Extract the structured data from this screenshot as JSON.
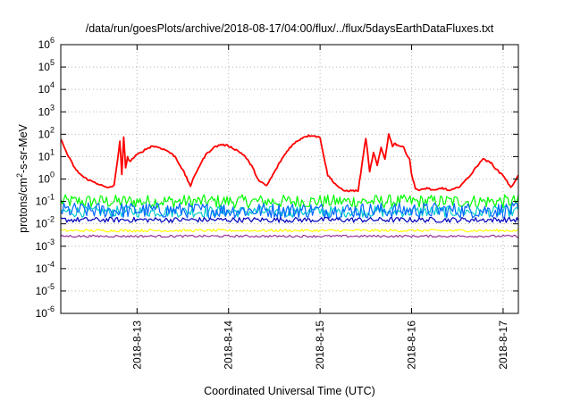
{
  "chart_data": {
    "type": "line",
    "title": "/data/run/goesPlots/archive/2018-08-17/04:00/flux/../flux/5daysEarthDataFluxes.txt",
    "xlabel": "Coordinated Universal Time (UTC)",
    "ylabel_prefix": "protons/cm",
    "ylabel_sup": "2",
    "ylabel_suffix": "-s-sr-MeV",
    "y_scale": "log",
    "ylim": [
      1e-06,
      1000000.0
    ],
    "y_ticks": [
      {
        "exp": -6,
        "base": "10",
        "sup": "-6"
      },
      {
        "exp": -5,
        "base": "10",
        "sup": "-5"
      },
      {
        "exp": -4,
        "base": "10",
        "sup": "-4"
      },
      {
        "exp": -3,
        "base": "10",
        "sup": "-3"
      },
      {
        "exp": -2,
        "base": "10",
        "sup": "-2"
      },
      {
        "exp": -1,
        "base": "10",
        "sup": "-1"
      },
      {
        "exp": 0,
        "base": "10",
        "sup": "0"
      },
      {
        "exp": 1,
        "base": "10",
        "sup": "1"
      },
      {
        "exp": 2,
        "base": "10",
        "sup": "2"
      },
      {
        "exp": 3,
        "base": "10",
        "sup": "3"
      },
      {
        "exp": 4,
        "base": "10",
        "sup": "4"
      },
      {
        "exp": 5,
        "base": "10",
        "sup": "5"
      },
      {
        "exp": 6,
        "base": "10",
        "sup": "6"
      }
    ],
    "xlim": [
      "2018-08-12T04:00",
      "2018-08-17T04:00"
    ],
    "x_ticks": [
      {
        "label": "2018-8-13",
        "at": "2018-08-13T00:00"
      },
      {
        "label": "2018-8-14",
        "at": "2018-08-14T00:00"
      },
      {
        "label": "2018-8-15",
        "at": "2018-08-15T00:00"
      },
      {
        "label": "2018-8-16",
        "at": "2018-08-16T00:00"
      },
      {
        "label": "2018-8-17",
        "at": "2018-08-17T00:00"
      }
    ],
    "grid": true,
    "legend": "none",
    "series": [
      {
        "color": "#ff0000",
        "x_hours": [
          0,
          2,
          4,
          6,
          8,
          10,
          12,
          14,
          15.5,
          16,
          16.5,
          17,
          17.5,
          18,
          20,
          22,
          24,
          26,
          28,
          30,
          32,
          34,
          36,
          38,
          40,
          42,
          44,
          46,
          48,
          50,
          52,
          54,
          56,
          58,
          60,
          62,
          64,
          66,
          68,
          70,
          72,
          74,
          76,
          78,
          80,
          81,
          82,
          83,
          84,
          85,
          86,
          87,
          87.5,
          88,
          89,
          90,
          91,
          91.5,
          92,
          93,
          94,
          96,
          98,
          100,
          102,
          104,
          106,
          108,
          110,
          111,
          112,
          113,
          114,
          115,
          116,
          117,
          118,
          120
        ],
        "values": [
          60,
          10,
          2.5,
          1.2,
          0.8,
          0.6,
          0.4,
          0.5,
          50,
          1.5,
          70,
          3,
          10,
          6,
          12,
          20,
          30,
          25,
          18,
          10,
          2.5,
          0.5,
          3,
          12,
          25,
          35,
          30,
          20,
          12,
          4,
          0.8,
          0.5,
          2,
          8,
          25,
          50,
          80,
          90,
          70,
          1.5,
          0.6,
          0.3,
          0.3,
          0.3,
          70,
          2,
          15,
          4,
          25,
          8,
          100,
          30,
          40,
          35,
          30,
          25,
          10,
          8,
          1.5,
          0.4,
          0.3,
          0.4,
          0.3,
          0.4,
          0.3,
          0.4,
          0.8,
          2,
          6,
          8,
          6,
          5,
          3,
          2,
          1.5,
          0.8,
          0.4,
          1.5
        ],
        "noise_dex": 0.04
      },
      {
        "color": "#00ff00",
        "base": 0.1,
        "noise_dex": 0.3
      },
      {
        "color": "#00cccc",
        "base": 0.035,
        "noise_dex": 0.25
      },
      {
        "color": "#0066ff",
        "base": 0.04,
        "noise_dex": 0.35
      },
      {
        "color": "#0000bb",
        "base": 0.015,
        "noise_dex": 0.12
      },
      {
        "color": "#ffff00",
        "base": 0.005,
        "noise_dex": 0.06
      },
      {
        "color": "#993399",
        "base": 0.0028,
        "noise_dex": 0.05
      }
    ]
  }
}
